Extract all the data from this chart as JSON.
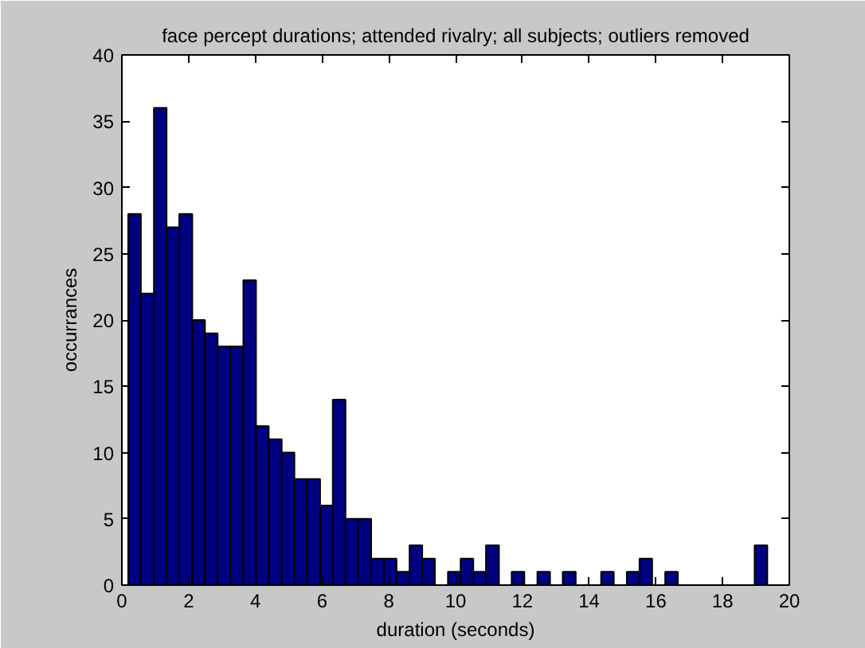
{
  "chart_data": {
    "type": "histogram",
    "title": "face percept durations; attended rivalry; all subjects; outliers removed",
    "xlabel": "duration (seconds)",
    "ylabel": "occurrances",
    "bins": [
      0.19,
      0.57,
      0.96,
      1.34,
      1.72,
      2.11,
      2.49,
      2.87,
      3.25,
      3.64,
      4.02,
      4.4,
      4.79,
      5.17,
      5.55,
      5.94,
      6.32,
      6.7,
      7.08,
      7.47,
      7.85,
      8.23,
      8.62,
      9.0,
      9.38,
      9.77,
      10.15,
      10.53,
      10.91,
      11.3,
      11.68,
      12.06,
      12.45,
      12.83,
      13.21,
      13.6,
      13.98,
      14.36,
      14.74,
      15.13,
      15.51,
      15.89,
      16.28,
      16.66,
      17.04,
      17.43,
      17.81,
      18.19,
      18.57,
      18.96,
      19.34
    ],
    "values": [
      28,
      22,
      36,
      27,
      28,
      20,
      19,
      18,
      18,
      23,
      12,
      11,
      10,
      8,
      8,
      6,
      14,
      5,
      5,
      2,
      2,
      1,
      3,
      2,
      0,
      1,
      2,
      1,
      3,
      0,
      1,
      0,
      1,
      0,
      1,
      0,
      0,
      1,
      0,
      1,
      2,
      0,
      1,
      0,
      0,
      0,
      0,
      0,
      0,
      3
    ],
    "color": "#000080",
    "xlim": [
      0,
      20
    ],
    "ylim": [
      0,
      40
    ],
    "xticks": [
      0,
      2,
      4,
      6,
      8,
      10,
      12,
      14,
      16,
      18,
      20
    ],
    "yticks": [
      0,
      5,
      10,
      15,
      20,
      25,
      30,
      35,
      40
    ],
    "grid": false
  }
}
